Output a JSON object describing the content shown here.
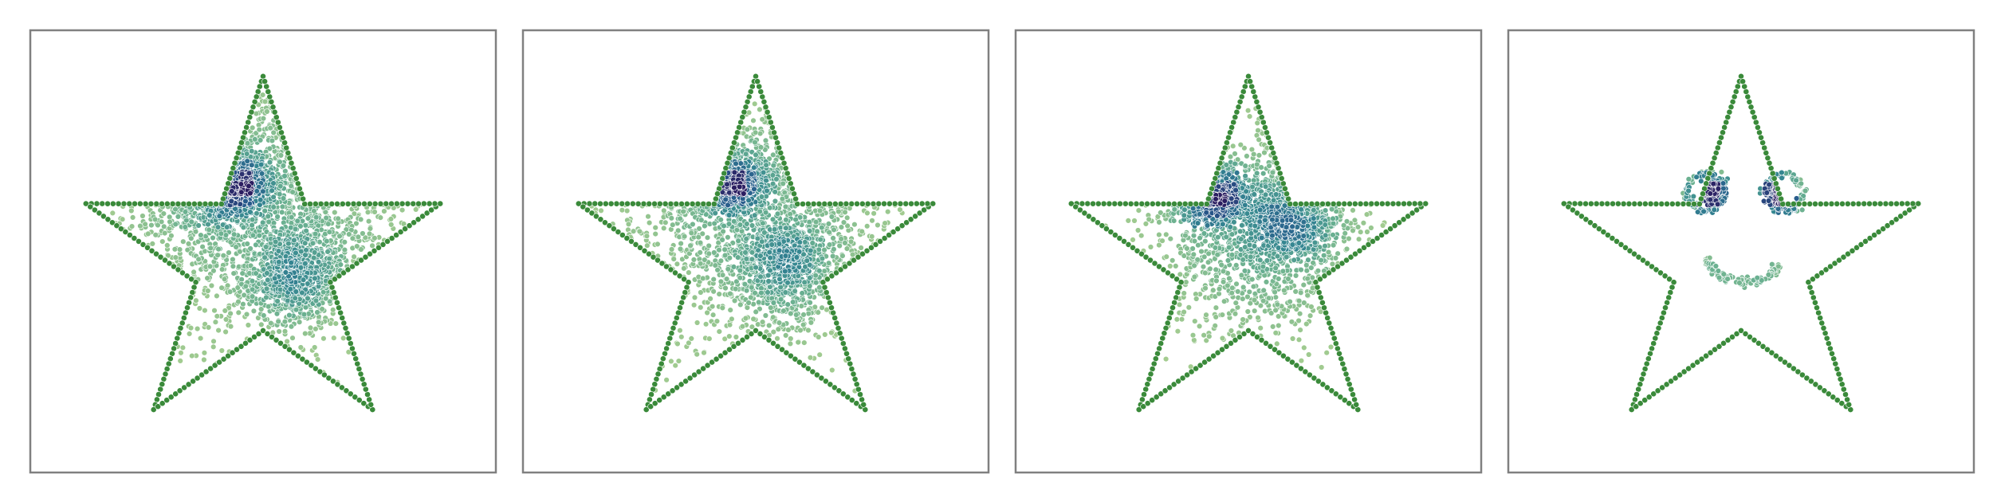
{
  "figure": {
    "panel_count": 4
  },
  "chart_data": [
    {
      "type": "scatter",
      "panel": 1,
      "title": "",
      "xlabel": "",
      "ylabel": "",
      "xlim": [
        -1.25,
        1.25
      ],
      "ylim": [
        -1.15,
        1.25
      ],
      "grid": false,
      "legend": "none",
      "axes_visible": false,
      "colormap": "crest",
      "outline": {
        "shape": "five-point star",
        "point_count": 250,
        "color": "#3a8a3a"
      },
      "clusters": [
        {
          "cx": -0.25,
          "cy": 0.42,
          "sx": 0.13,
          "sy": 0.09,
          "n": 750
        },
        {
          "cx": 0.18,
          "cy": -0.08,
          "sx": 0.13,
          "sy": 0.13,
          "n": 700
        },
        {
          "cx": 0.0,
          "cy": 0.35,
          "sx": 0.45,
          "sy": 0.4,
          "n": 1300
        }
      ]
    },
    {
      "type": "scatter",
      "panel": 2,
      "title": "",
      "xlabel": "",
      "ylabel": "",
      "xlim": [
        -1.25,
        1.25
      ],
      "ylim": [
        -1.15,
        1.25
      ],
      "grid": false,
      "legend": "none",
      "axes_visible": false,
      "colormap": "crest",
      "outline": {
        "shape": "five-point star",
        "point_count": 250,
        "color": "#3a8a3a"
      },
      "clusters": [
        {
          "cx": -0.22,
          "cy": 0.42,
          "sx": 0.13,
          "sy": 0.08,
          "n": 650
        },
        {
          "cx": 0.15,
          "cy": 0.0,
          "sx": 0.14,
          "sy": 0.14,
          "n": 650
        },
        {
          "cx": 0.0,
          "cy": 0.25,
          "sx": 0.42,
          "sy": 0.38,
          "n": 1100
        }
      ]
    },
    {
      "type": "scatter",
      "panel": 3,
      "title": "",
      "xlabel": "",
      "ylabel": "",
      "xlim": [
        -1.25,
        1.25
      ],
      "ylim": [
        -1.15,
        1.25
      ],
      "grid": false,
      "legend": "none",
      "axes_visible": false,
      "colormap": "crest",
      "outline": {
        "shape": "five-point star",
        "point_count": 250,
        "color": "#3a8a3a"
      },
      "clusters": [
        {
          "cx": -0.24,
          "cy": 0.37,
          "sx": 0.11,
          "sy": 0.08,
          "n": 550
        },
        {
          "cx": 0.22,
          "cy": 0.22,
          "sx": 0.15,
          "sy": 0.14,
          "n": 650
        },
        {
          "cx": 0.0,
          "cy": 0.12,
          "sx": 0.28,
          "sy": 0.3,
          "n": 900
        }
      ]
    },
    {
      "type": "scatter",
      "panel": 4,
      "title": "",
      "xlabel": "",
      "ylabel": "",
      "xlim": [
        -1.25,
        1.25
      ],
      "ylim": [
        -1.15,
        1.25
      ],
      "grid": false,
      "legend": "none",
      "axes_visible": false,
      "colormap": "crest",
      "outline": {
        "shape": "five-point star",
        "point_count": 250,
        "color": "#3a8a3a"
      },
      "clusters": [
        {
          "cx": -0.19,
          "cy": 0.37,
          "sx": 0.04,
          "sy": 0.04,
          "n": 170
        },
        {
          "cx": 0.23,
          "cy": 0.37,
          "sx": 0.04,
          "sy": 0.04,
          "n": 170
        }
      ],
      "rings": [
        {
          "cx": -0.19,
          "cy": 0.37,
          "r": 0.1,
          "n": 90
        },
        {
          "cx": 0.23,
          "cy": 0.37,
          "r": 0.1,
          "n": 90
        }
      ],
      "smile": {
        "cx": 0.02,
        "cy": 0.1,
        "r": 0.22,
        "angle_start_deg": 200,
        "angle_end_deg": 330,
        "n": 110
      }
    }
  ]
}
